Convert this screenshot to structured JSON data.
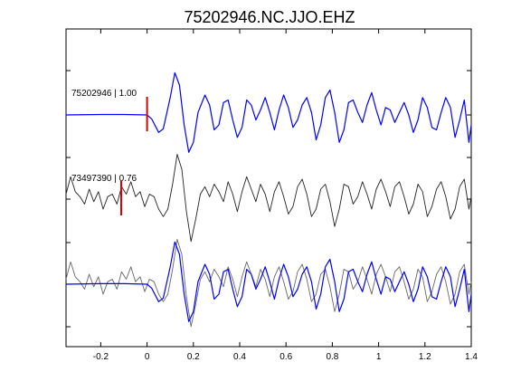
{
  "title": "75202946.NC.JJO.EHZ",
  "colors": {
    "primary": "#0000ff",
    "secondary": "#222222",
    "overlay": "#666666",
    "pick": "#dd0000",
    "axis": "#000000"
  },
  "chart_data": {
    "type": "line",
    "title": "75202946.NC.JJO.EHZ",
    "xlabel": "",
    "ylabel": "",
    "xlim": [
      -0.35,
      1.4
    ],
    "xticks": [
      -0.2,
      0,
      0.2,
      0.4,
      0.6,
      0.8,
      1,
      1.2,
      1.4
    ],
    "xtick_labels": [
      "-0.2",
      "0",
      "0.2",
      "0.4",
      "0.6",
      "0.8",
      "1",
      "1.2",
      "1.4"
    ],
    "grid": false,
    "traces": [
      {
        "label": "75202946 | 1.00",
        "row": 1,
        "pick_time": 0.0,
        "series": [
          {
            "role": "primary",
            "t": [
              -0.35,
              -0.2,
              -0.1,
              0,
              0.02,
              0.05,
              0.07,
              0.1,
              0.12,
              0.14,
              0.16,
              0.18,
              0.2,
              0.22,
              0.25,
              0.27,
              0.29,
              0.31,
              0.33,
              0.35,
              0.37,
              0.39,
              0.41,
              0.43,
              0.45,
              0.47,
              0.49,
              0.51,
              0.53,
              0.55,
              0.57,
              0.59,
              0.61,
              0.63,
              0.65,
              0.67,
              0.69,
              0.71,
              0.73,
              0.75,
              0.77,
              0.79,
              0.81,
              0.83,
              0.85,
              0.87,
              0.89,
              0.91,
              0.93,
              0.95,
              0.97,
              0.99,
              1.01,
              1.03,
              1.05,
              1.07,
              1.09,
              1.11,
              1.13,
              1.15,
              1.17,
              1.19,
              1.21,
              1.23,
              1.25,
              1.27,
              1.29,
              1.31,
              1.33,
              1.35,
              1.37,
              1.39,
              1.4
            ],
            "v": [
              0,
              0.01,
              0.01,
              0,
              -0.08,
              -0.35,
              -0.28,
              0.35,
              0.85,
              0.6,
              -0.2,
              -0.75,
              -0.55,
              0.05,
              0.4,
              0.2,
              -0.3,
              -0.2,
              0.25,
              0.3,
              -0.1,
              -0.45,
              -0.25,
              0.3,
              0.2,
              -0.1,
              0.1,
              0.35,
              0.05,
              -0.3,
              0.1,
              0.4,
              0.15,
              -0.25,
              -0.1,
              0.2,
              0.35,
              0.05,
              -0.5,
              -0.2,
              0.35,
              0.5,
              0.05,
              -0.55,
              -0.3,
              0.25,
              0.3,
              0.05,
              -0.15,
              0.2,
              0.45,
              0.1,
              -0.2,
              0.15,
              0.1,
              -0.15,
              0.05,
              0.25,
              0,
              -0.35,
              -0.1,
              0.35,
              0.15,
              -0.25,
              -0.3,
              0.05,
              0.35,
              0.15,
              -0.45,
              -0.1,
              0.3,
              -0.55,
              -0.2
            ]
          }
        ]
      },
      {
        "label": "73497390 | 0.76",
        "row": 2,
        "pick_time": -0.1,
        "series": [
          {
            "role": "secondary",
            "t": [
              -0.35,
              -0.33,
              -0.31,
              -0.29,
              -0.27,
              -0.25,
              -0.23,
              -0.21,
              -0.19,
              -0.17,
              -0.15,
              -0.13,
              -0.11,
              -0.09,
              -0.07,
              -0.05,
              -0.03,
              -0.01,
              0.01,
              0.03,
              0.05,
              0.07,
              0.09,
              0.11,
              0.13,
              0.15,
              0.17,
              0.19,
              0.21,
              0.23,
              0.25,
              0.27,
              0.29,
              0.31,
              0.33,
              0.35,
              0.37,
              0.39,
              0.41,
              0.43,
              0.45,
              0.47,
              0.49,
              0.51,
              0.53,
              0.55,
              0.57,
              0.59,
              0.61,
              0.63,
              0.65,
              0.67,
              0.69,
              0.71,
              0.73,
              0.75,
              0.77,
              0.79,
              0.81,
              0.83,
              0.85,
              0.87,
              0.89,
              0.91,
              0.93,
              0.95,
              0.97,
              0.99,
              1.01,
              1.03,
              1.05,
              1.07,
              1.09,
              1.11,
              1.13,
              1.15,
              1.17,
              1.19,
              1.21,
              1.23,
              1.25,
              1.27,
              1.29,
              1.31,
              1.33,
              1.35,
              1.37,
              1.39,
              1.4
            ],
            "v": [
              0.1,
              0.45,
              0.15,
              0.05,
              -0.1,
              0.2,
              -0.05,
              0.15,
              -0.2,
              0.05,
              0.1,
              -0.1,
              0.25,
              0.1,
              0.35,
              0.05,
              0.15,
              -0.15,
              0.1,
              0.05,
              -0.2,
              -0.35,
              -0.2,
              0.3,
              0.9,
              0.6,
              -0.25,
              -0.85,
              -0.4,
              0.1,
              0.25,
              0.05,
              0.3,
              0.15,
              -0.05,
              0.35,
              0.1,
              -0.25,
              0.15,
              0.45,
              0.2,
              -0.05,
              0.3,
              0.1,
              -0.25,
              0.15,
              0.35,
              0.05,
              -0.3,
              -0.15,
              0.25,
              0.4,
              0.1,
              -0.35,
              -0.2,
              0.2,
              0.3,
              -0.05,
              -0.55,
              -0.2,
              0.3,
              0.25,
              -0.1,
              0.05,
              0.35,
              0.1,
              -0.2,
              0.2,
              0.4,
              0.15,
              -0.15,
              0.25,
              0.35,
              0.05,
              -0.3,
              -0.1,
              0.3,
              0.15,
              -0.35,
              -0.15,
              0.2,
              0.35,
              0.05,
              -0.4,
              -0.2,
              0.25,
              0.4,
              -0.2,
              0.05
            ]
          }
        ]
      },
      {
        "label": "",
        "row": 3,
        "pick_time": null,
        "series": [
          {
            "role": "overlay",
            "ref_trace": 1,
            "shift": 0.0
          },
          {
            "role": "primary",
            "ref_trace": 0,
            "shift": 0.0
          }
        ]
      }
    ]
  }
}
